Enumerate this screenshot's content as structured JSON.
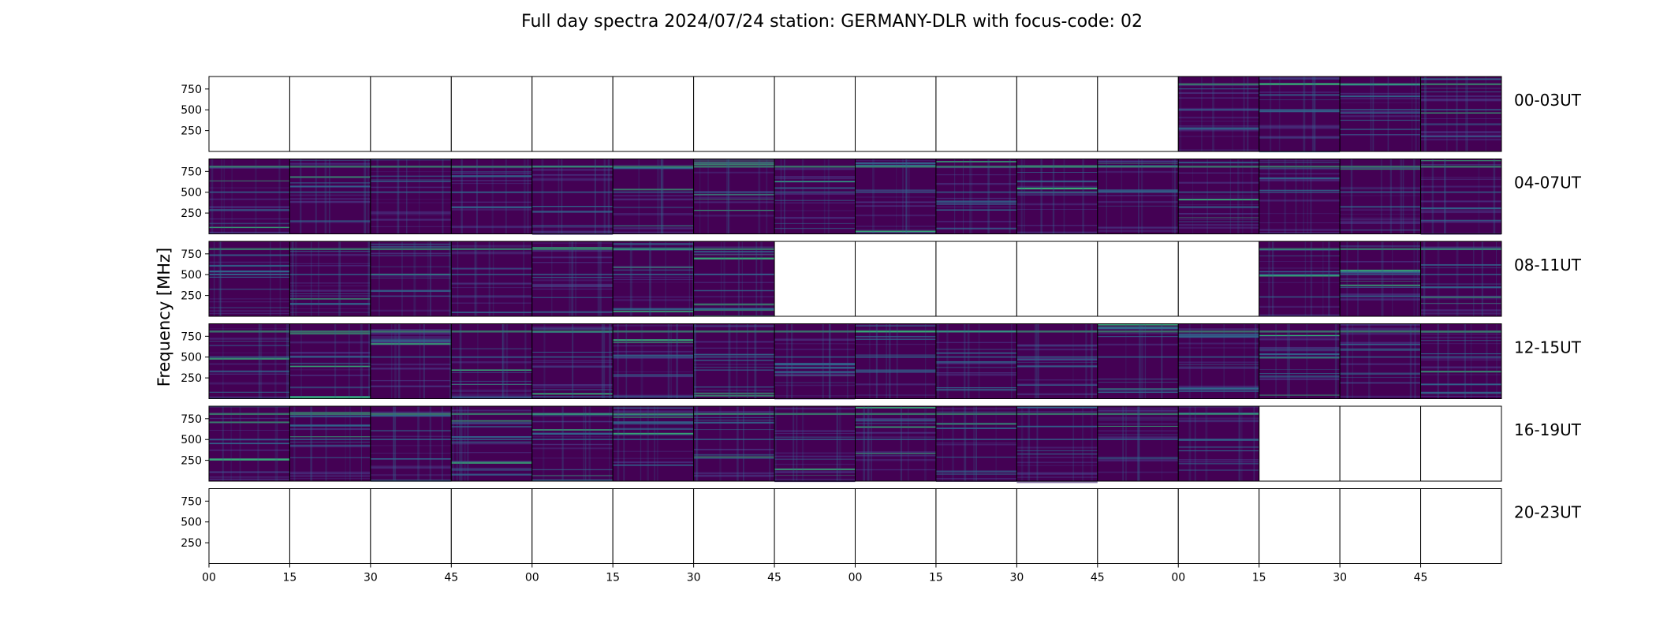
{
  "chart_data": {
    "type": "heatmap",
    "title": "Full day spectra 2024/07/24 station: GERMANY-DLR with focus-code: 02",
    "ylabel": "Frequency [MHz]",
    "yticks": [
      250,
      500,
      750
    ],
    "ylim": [
      0,
      900
    ],
    "xticks": [
      "00",
      "15",
      "30",
      "45",
      "00",
      "15",
      "30",
      "45",
      "00",
      "15",
      "30",
      "45",
      "00",
      "15",
      "30",
      "45"
    ],
    "panels_per_row": 16,
    "panel_minutes": 15,
    "colormap": "viridis",
    "rows": [
      {
        "label": "00-03UT",
        "coverage": [
          0,
          0,
          0,
          0,
          0,
          0,
          0,
          0,
          0,
          0,
          0,
          0,
          1,
          1,
          1,
          1
        ]
      },
      {
        "label": "04-07UT",
        "coverage": [
          1,
          1,
          1,
          1,
          1,
          1,
          1,
          1,
          1,
          1,
          1,
          1,
          1,
          1,
          1,
          1
        ]
      },
      {
        "label": "08-11UT",
        "coverage": [
          1,
          1,
          1,
          1,
          1,
          1,
          1,
          0,
          0,
          0,
          0,
          0,
          0,
          1,
          1,
          1
        ]
      },
      {
        "label": "12-15UT",
        "coverage": [
          1,
          1,
          1,
          1,
          1,
          1,
          1,
          1,
          1,
          1,
          1,
          1,
          1,
          1,
          1,
          1
        ]
      },
      {
        "label": "16-19UT",
        "coverage": [
          1,
          1,
          1,
          1,
          1,
          1,
          1,
          1,
          1,
          1,
          1,
          1,
          1,
          0,
          0,
          0
        ]
      },
      {
        "label": "20-23UT",
        "coverage": [
          0,
          0,
          0,
          0,
          0,
          0,
          0,
          0,
          0,
          0,
          0,
          0,
          0,
          0,
          0,
          0
        ]
      }
    ],
    "colors": {
      "background": "#440154",
      "low": "#472c7a",
      "mid": "#31688e",
      "high": "#35b779",
      "peak": "#fde725"
    }
  }
}
